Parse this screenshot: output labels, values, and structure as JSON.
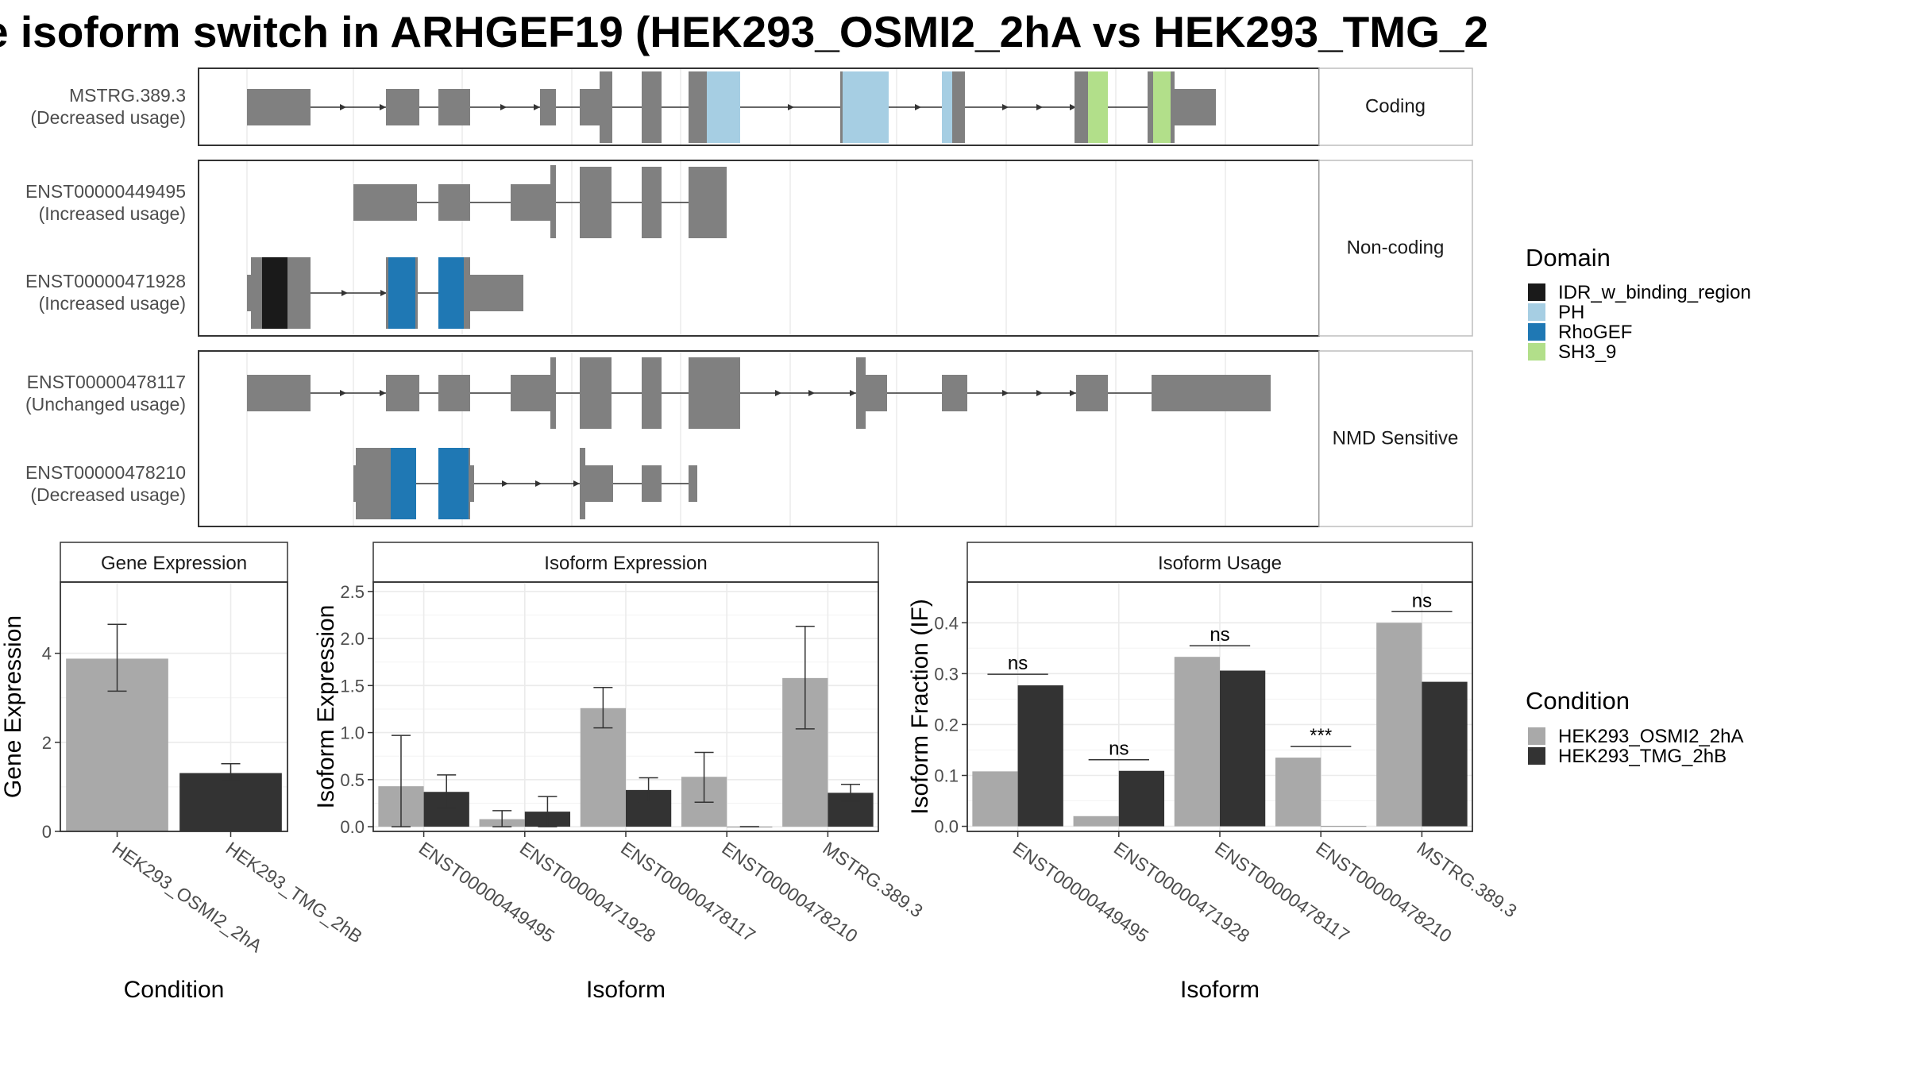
{
  "title": "e isoform switch in ARHGEF19 (HEK293_OSMI2_2hA vs HEK293_TMG_2",
  "colors": {
    "exon": "#808080",
    "IDR_w_binding_region": "#1a1a1a",
    "PH": "#a6cee3",
    "RhoGEF": "#1f78b4",
    "SH3_9": "#b2df8a",
    "HEK293_OSMI2_2hA": "#a9a9a9",
    "HEK293_TMG_2hB": "#333333"
  },
  "structure": {
    "groups": [
      {
        "label": "Coding",
        "isoforms": [
          {
            "id": "MSTRG.389.3",
            "usage": "(Decreased usage)"
          }
        ]
      },
      {
        "label": "Non-coding",
        "isoforms": [
          {
            "id": "ENST00000449495",
            "usage": "(Increased usage)"
          },
          {
            "id": "ENST00000471928",
            "usage": "(Increased usage)"
          }
        ]
      },
      {
        "label": "NMD Sensitive",
        "isoforms": [
          {
            "id": "ENST00000478117",
            "usage": "(Unchanged usage)"
          },
          {
            "id": "ENST00000478210",
            "usage": "(Decreased usage)"
          }
        ]
      }
    ]
  },
  "legend_domain": {
    "title": "Domain",
    "entries": [
      "IDR_w_binding_region",
      "PH",
      "RhoGEF",
      "SH3_9"
    ]
  },
  "legend_condition": {
    "title": "Condition",
    "entries": [
      "HEK293_OSMI2_2hA",
      "HEK293_TMG_2hB"
    ]
  },
  "chart_data": [
    {
      "type": "bar",
      "title": "Gene Expression",
      "xlabel": "Condition",
      "ylabel": "Gene Expression",
      "categories": [
        "HEK293_OSMI2_2hA",
        "HEK293_TMG_2hB"
      ],
      "values": [
        3.88,
        1.31
      ],
      "error": [
        [
          3.15,
          4.65
        ],
        [
          1.14,
          1.52
        ]
      ],
      "ylim": [
        0,
        5.6
      ],
      "yticks": [
        0,
        2,
        4
      ]
    },
    {
      "type": "bar",
      "title": "Isoform Expression",
      "xlabel": "Isoform",
      "ylabel": "Isoform Expression",
      "categories": [
        "ENST00000449495",
        "ENST00000471928",
        "ENST00000478117",
        "ENST00000478210",
        "MSTRG.389.3"
      ],
      "series": [
        {
          "name": "HEK293_OSMI2_2hA",
          "values": [
            0.43,
            0.08,
            1.26,
            0.53,
            1.58
          ],
          "error": [
            [
              0.0,
              0.97
            ],
            [
              0.0,
              0.17
            ],
            [
              1.05,
              1.48
            ],
            [
              0.26,
              0.79
            ],
            [
              1.04,
              2.13
            ]
          ]
        },
        {
          "name": "HEK293_TMG_2hB",
          "values": [
            0.37,
            0.16,
            0.39,
            0.0,
            0.36
          ],
          "error": [
            [
              0.2,
              0.55
            ],
            [
              0.0,
              0.32
            ],
            [
              0.26,
              0.52
            ],
            [
              0.0,
              0.0
            ],
            [
              0.27,
              0.45
            ]
          ]
        }
      ],
      "ylim": [
        -0.05,
        2.6
      ],
      "yticks": [
        "0.0",
        "0.5",
        "1.0",
        "1.5",
        "2.0",
        "2.5"
      ]
    },
    {
      "type": "bar",
      "title": "Isoform Usage",
      "xlabel": "Isoform",
      "ylabel": "Isoform Fraction (IF)",
      "categories": [
        "ENST00000449495",
        "ENST00000471928",
        "ENST00000478117",
        "ENST00000478210",
        "MSTRG.389.3"
      ],
      "series": [
        {
          "name": "HEK293_OSMI2_2hA",
          "values": [
            0.108,
            0.02,
            0.333,
            0.135,
            0.4
          ]
        },
        {
          "name": "HEK293_TMG_2hB",
          "values": [
            0.277,
            0.109,
            0.306,
            0.0,
            0.284
          ]
        }
      ],
      "significance": [
        "ns",
        "ns",
        "ns",
        "***",
        "ns"
      ],
      "ylim": [
        -0.01,
        0.48
      ],
      "yticks": [
        "0.0",
        "0.1",
        "0.2",
        "0.3",
        "0.4"
      ]
    }
  ]
}
